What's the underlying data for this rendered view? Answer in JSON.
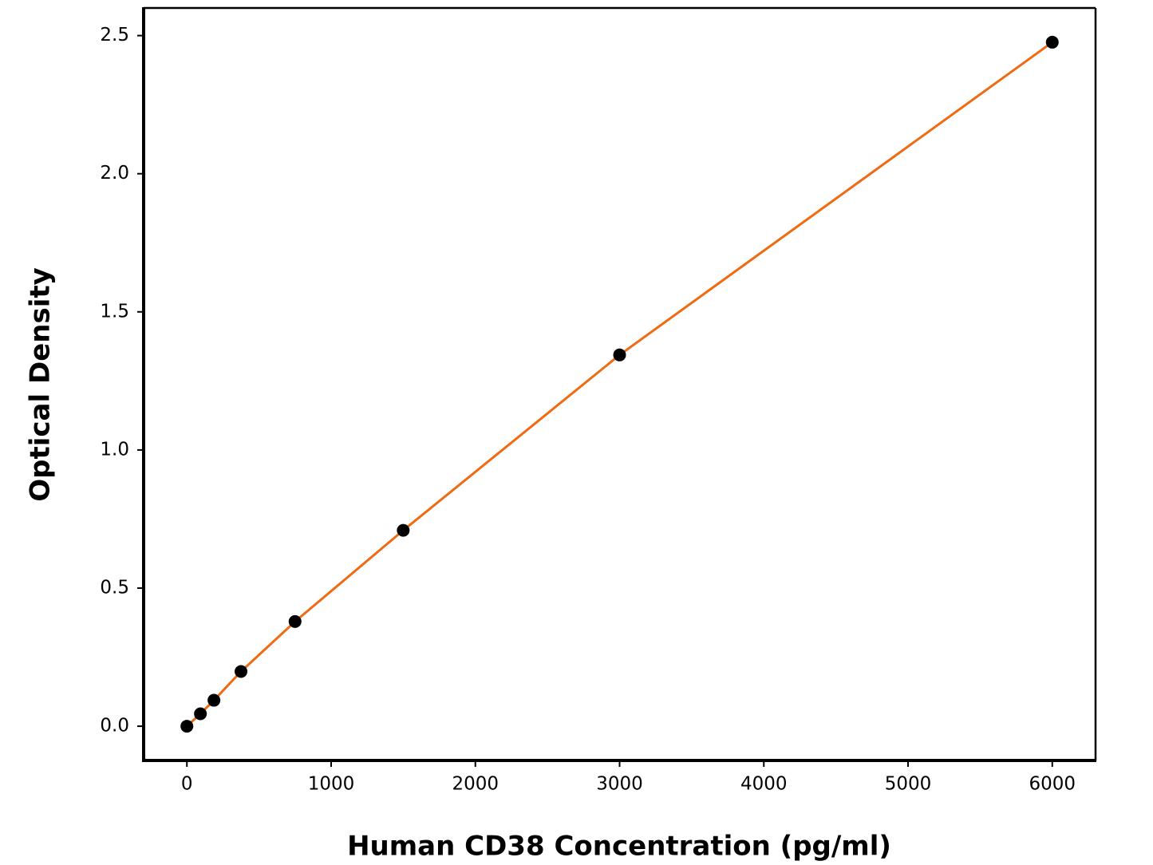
{
  "chart_data": {
    "type": "scatter",
    "x_label": "Human CD38 Concentration (pg/ml)",
    "y_label": "Optical Density",
    "x": [
      0,
      93.75,
      187.5,
      375,
      750,
      1500,
      3000,
      6000
    ],
    "values": [
      0,
      0.045,
      0.094,
      0.198,
      0.379,
      0.709,
      1.344,
      2.476
    ],
    "color": "#000000",
    "line_color": "#f06a12",
    "xlim": [
      -300,
      6300
    ],
    "ylim": [
      -0.124,
      2.6
    ],
    "xticks": [
      0,
      1000,
      2000,
      3000,
      4000,
      5000,
      6000
    ],
    "yticks": [
      {
        "value": 0,
        "label": "0.0"
      },
      {
        "value": 0.5,
        "label": "0.5"
      },
      {
        "value": 1,
        "label": "1.0"
      },
      {
        "value": 1.5,
        "label": "1.5"
      },
      {
        "value": 2,
        "label": "2.0"
      },
      {
        "value": 2.5,
        "label": "2.5"
      }
    ],
    "grid": false
  }
}
